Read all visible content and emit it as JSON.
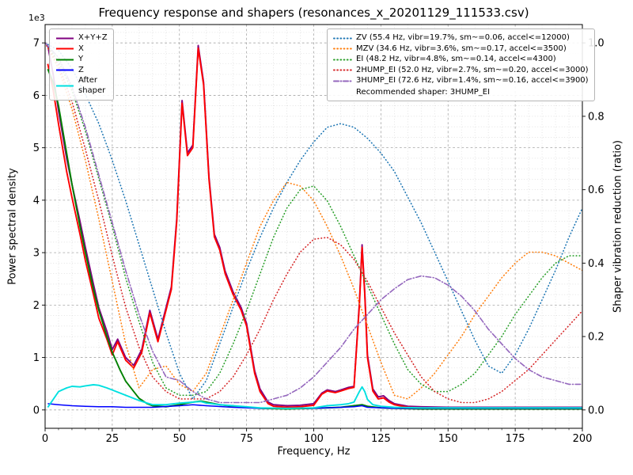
{
  "title": "Frequency response and shapers (resonances_x_20201129_111533.csv)",
  "axes": {
    "xlabel": "Frequency, Hz",
    "ylabel_left": "Power spectral density",
    "ylabel_right": "Shaper vibration reduction (ratio)",
    "offset_text": "1e3",
    "x_ticks": [
      0,
      25,
      50,
      75,
      100,
      125,
      150,
      175,
      200
    ],
    "y_ticks_left": [
      0,
      1,
      2,
      3,
      4,
      5,
      6,
      7
    ],
    "y_ticks_right": [
      0.0,
      0.2,
      0.4,
      0.6,
      0.8,
      1.0
    ]
  },
  "legend_psd": {
    "series_names": [
      "X+Y+Z",
      "X",
      "Y",
      "Z",
      "After shaper"
    ]
  },
  "legend_shapers": {
    "series_names": [
      "ZV",
      "MZV",
      "EI",
      "2HUMP_EI",
      "3HUMP_EI"
    ],
    "note": "Recommended shaper: 3HUMP_EI"
  },
  "colors": {
    "grid_major": "#a6a6a6",
    "grid_minor": "#d9d9d9",
    "spine": "#000000"
  },
  "chart_data": {
    "type": "line",
    "title": "Frequency response and shapers (resonances_x_20201129_111533.csv)",
    "xlabel": "Frequency, Hz",
    "ylabel": "Power spectral density",
    "ylabel2": "Shaper vibration reduction (ratio)",
    "xlim": [
      0,
      200
    ],
    "ylim_left": [
      0,
      7
    ],
    "left_axis_unit": "1e3",
    "ylim_right": [
      0.0,
      1.0
    ],
    "grid": true,
    "legend_positions": [
      "upper left",
      "upper right"
    ],
    "series": [
      {
        "name": "X+Y+Z",
        "label": "X+Y+Z",
        "axis": "left",
        "color": "#800080",
        "style": "solid",
        "x": [
          1,
          3,
          5,
          8,
          10,
          13,
          15,
          18,
          20,
          23,
          25,
          27,
          30,
          33,
          36,
          39,
          42,
          45,
          47,
          49,
          51,
          53,
          55,
          57,
          59,
          61,
          63,
          65,
          67,
          70,
          73,
          75,
          78,
          80,
          83,
          85,
          90,
          95,
          100,
          103,
          105,
          108,
          110,
          113,
          115,
          117,
          118,
          119,
          120,
          122,
          124,
          126,
          128,
          130,
          135,
          140,
          150,
          160,
          175,
          200
        ],
        "y": [
          6.95,
          6.4,
          5.7,
          4.8,
          4.3,
          3.6,
          3.1,
          2.4,
          1.95,
          1.5,
          1.15,
          1.35,
          1.0,
          0.85,
          1.15,
          1.9,
          1.35,
          1.95,
          2.35,
          3.65,
          5.9,
          4.9,
          5.05,
          6.95,
          6.25,
          4.45,
          3.35,
          3.1,
          2.65,
          2.25,
          1.95,
          1.65,
          0.75,
          0.4,
          0.15,
          0.1,
          0.08,
          0.09,
          0.12,
          0.32,
          0.38,
          0.35,
          0.38,
          0.43,
          0.45,
          2.05,
          3.15,
          2.25,
          1.05,
          0.4,
          0.25,
          0.27,
          0.18,
          0.12,
          0.07,
          0.06,
          0.05,
          0.05,
          0.05,
          0.05
        ]
      },
      {
        "name": "X",
        "label": "X",
        "axis": "left",
        "color": "#ff0000",
        "style": "solid",
        "x": [
          1,
          3,
          5,
          8,
          10,
          13,
          15,
          18,
          20,
          23,
          25,
          27,
          30,
          33,
          36,
          39,
          42,
          45,
          47,
          49,
          51,
          53,
          55,
          57,
          59,
          61,
          63,
          65,
          67,
          70,
          73,
          75,
          78,
          80,
          83,
          85,
          90,
          95,
          100,
          103,
          105,
          108,
          110,
          113,
          115,
          117,
          118,
          119,
          120,
          122,
          124,
          126,
          128,
          130,
          135,
          140,
          150,
          160,
          175,
          200
        ],
        "y": [
          6.6,
          6.1,
          5.45,
          4.55,
          4.05,
          3.35,
          2.85,
          2.2,
          1.75,
          1.35,
          1.05,
          1.3,
          0.95,
          0.8,
          1.1,
          1.85,
          1.3,
          1.9,
          2.3,
          3.6,
          5.85,
          4.85,
          5.0,
          6.9,
          6.2,
          4.4,
          3.3,
          3.05,
          2.6,
          2.2,
          1.9,
          1.6,
          0.7,
          0.35,
          0.12,
          0.07,
          0.05,
          0.06,
          0.09,
          0.3,
          0.36,
          0.33,
          0.36,
          0.41,
          0.43,
          2.0,
          3.1,
          2.2,
          1.0,
          0.36,
          0.21,
          0.23,
          0.15,
          0.1,
          0.05,
          0.04,
          0.03,
          0.03,
          0.03,
          0.03
        ]
      },
      {
        "name": "Y",
        "label": "Y",
        "axis": "left",
        "color": "#008000",
        "style": "solid",
        "x": [
          1,
          3,
          5,
          8,
          10,
          13,
          15,
          18,
          20,
          23,
          25,
          28,
          30,
          33,
          35,
          38,
          40,
          45,
          50,
          55,
          58,
          60,
          65,
          70,
          75,
          80,
          90,
          100,
          110,
          115,
          118,
          120,
          125,
          130,
          140,
          150,
          175,
          200
        ],
        "y": [
          6.5,
          6.25,
          5.8,
          4.9,
          4.3,
          3.5,
          3.0,
          2.3,
          1.9,
          1.4,
          1.1,
          0.75,
          0.55,
          0.35,
          0.22,
          0.12,
          0.08,
          0.06,
          0.1,
          0.15,
          0.17,
          0.15,
          0.1,
          0.07,
          0.05,
          0.03,
          0.02,
          0.03,
          0.05,
          0.08,
          0.1,
          0.07,
          0.04,
          0.03,
          0.02,
          0.02,
          0.02,
          0.02
        ]
      },
      {
        "name": "Z",
        "label": "Z",
        "axis": "left",
        "color": "#0000ff",
        "style": "solid",
        "x": [
          1,
          5,
          10,
          15,
          20,
          25,
          30,
          40,
          50,
          55,
          60,
          70,
          80,
          100,
          110,
          115,
          118,
          120,
          130,
          150,
          175,
          200
        ],
        "y": [
          0.12,
          0.1,
          0.08,
          0.07,
          0.06,
          0.06,
          0.05,
          0.05,
          0.08,
          0.1,
          0.08,
          0.05,
          0.03,
          0.03,
          0.05,
          0.06,
          0.08,
          0.05,
          0.03,
          0.03,
          0.03,
          0.03
        ]
      },
      {
        "name": "After shaper",
        "label": "After\nshaper",
        "axis": "left",
        "color": "#00e0e0",
        "style": "solid",
        "x": [
          1,
          5,
          8,
          10,
          13,
          15,
          18,
          20,
          23,
          25,
          28,
          30,
          33,
          35,
          38,
          40,
          45,
          48,
          50,
          53,
          55,
          58,
          60,
          65,
          70,
          75,
          80,
          90,
          100,
          105,
          110,
          113,
          115,
          117,
          118,
          119,
          120,
          122,
          125,
          130,
          140,
          150,
          175,
          200
        ],
        "y": [
          0.05,
          0.35,
          0.42,
          0.45,
          0.44,
          0.46,
          0.48,
          0.47,
          0.42,
          0.38,
          0.32,
          0.28,
          0.22,
          0.18,
          0.13,
          0.1,
          0.1,
          0.12,
          0.13,
          0.14,
          0.15,
          0.16,
          0.13,
          0.1,
          0.08,
          0.06,
          0.04,
          0.03,
          0.04,
          0.08,
          0.1,
          0.12,
          0.15,
          0.35,
          0.44,
          0.35,
          0.2,
          0.1,
          0.07,
          0.05,
          0.04,
          0.04,
          0.04,
          0.04
        ]
      },
      {
        "name": "ZV",
        "label": "ZV (55.4 Hz, vibr=19.7%, sm~=0.06, accel<=12000)",
        "axis": "right",
        "color": "#1f77b4",
        "style": "dotted",
        "x": [
          0,
          5,
          10,
          15,
          20,
          25,
          30,
          35,
          40,
          45,
          50,
          55,
          60,
          65,
          70,
          75,
          80,
          85,
          90,
          95,
          100,
          105,
          110,
          115,
          120,
          125,
          130,
          135,
          140,
          145,
          150,
          155,
          160,
          165,
          170,
          175,
          180,
          185,
          190,
          195,
          200
        ],
        "y": [
          1.0,
          0.98,
          0.93,
          0.86,
          0.78,
          0.68,
          0.57,
          0.45,
          0.33,
          0.21,
          0.1,
          0.03,
          0.08,
          0.18,
          0.28,
          0.38,
          0.47,
          0.55,
          0.62,
          0.68,
          0.73,
          0.77,
          0.78,
          0.77,
          0.74,
          0.7,
          0.65,
          0.58,
          0.51,
          0.43,
          0.35,
          0.27,
          0.19,
          0.12,
          0.1,
          0.15,
          0.22,
          0.3,
          0.38,
          0.47,
          0.55
        ]
      },
      {
        "name": "MZV",
        "label": "MZV (34.6 Hz, vibr=3.6%, sm~=0.17, accel<=3500)",
        "axis": "right",
        "color": "#ff7f0e",
        "style": "dotted",
        "x": [
          0,
          5,
          10,
          15,
          20,
          25,
          30,
          35,
          40,
          45,
          50,
          55,
          60,
          65,
          70,
          75,
          80,
          85,
          90,
          95,
          100,
          105,
          110,
          115,
          120,
          125,
          130,
          135,
          140,
          145,
          150,
          155,
          160,
          165,
          170,
          175,
          180,
          185,
          190,
          195,
          200
        ],
        "y": [
          1.0,
          0.93,
          0.82,
          0.68,
          0.52,
          0.35,
          0.18,
          0.06,
          0.11,
          0.12,
          0.07,
          0.05,
          0.1,
          0.2,
          0.3,
          0.4,
          0.5,
          0.57,
          0.62,
          0.61,
          0.57,
          0.5,
          0.42,
          0.33,
          0.23,
          0.13,
          0.04,
          0.03,
          0.06,
          0.1,
          0.15,
          0.2,
          0.26,
          0.31,
          0.36,
          0.4,
          0.43,
          0.43,
          0.42,
          0.4,
          0.38
        ]
      },
      {
        "name": "EI",
        "label": "EI (48.2 Hz, vibr=4.8%, sm~=0.14, accel<=4300)",
        "axis": "right",
        "color": "#2ca02c",
        "style": "dotted",
        "x": [
          0,
          5,
          10,
          15,
          20,
          25,
          30,
          35,
          40,
          45,
          50,
          55,
          60,
          65,
          70,
          75,
          80,
          85,
          90,
          95,
          100,
          105,
          110,
          115,
          120,
          125,
          130,
          135,
          140,
          145,
          150,
          155,
          160,
          165,
          170,
          175,
          180,
          185,
          190,
          195,
          200
        ],
        "y": [
          1.0,
          0.95,
          0.87,
          0.76,
          0.63,
          0.5,
          0.36,
          0.24,
          0.13,
          0.06,
          0.04,
          0.04,
          0.05,
          0.1,
          0.18,
          0.27,
          0.37,
          0.47,
          0.55,
          0.6,
          0.61,
          0.57,
          0.5,
          0.42,
          0.34,
          0.26,
          0.18,
          0.11,
          0.07,
          0.05,
          0.05,
          0.07,
          0.1,
          0.15,
          0.2,
          0.26,
          0.31,
          0.36,
          0.4,
          0.42,
          0.42
        ]
      },
      {
        "name": "2HUMP_EI",
        "label": "2HUMP_EI (52.0 Hz, vibr=2.7%, sm~=0.20, accel<=3000)",
        "axis": "right",
        "color": "#d62728",
        "style": "dotted",
        "x": [
          0,
          5,
          10,
          15,
          20,
          25,
          30,
          35,
          40,
          45,
          50,
          55,
          60,
          65,
          70,
          75,
          80,
          85,
          90,
          95,
          100,
          105,
          110,
          115,
          120,
          125,
          130,
          135,
          140,
          145,
          150,
          155,
          160,
          165,
          170,
          175,
          180,
          185,
          190,
          195,
          200
        ],
        "y": [
          1.0,
          0.94,
          0.84,
          0.71,
          0.57,
          0.42,
          0.28,
          0.17,
          0.09,
          0.05,
          0.03,
          0.03,
          0.03,
          0.05,
          0.09,
          0.15,
          0.22,
          0.3,
          0.37,
          0.43,
          0.465,
          0.47,
          0.45,
          0.41,
          0.35,
          0.28,
          0.21,
          0.15,
          0.09,
          0.05,
          0.03,
          0.02,
          0.02,
          0.03,
          0.05,
          0.08,
          0.11,
          0.15,
          0.19,
          0.23,
          0.27
        ]
      },
      {
        "name": "3HUMP_EI",
        "label": "3HUMP_EI (72.6 Hz, vibr=1.4%, sm~=0.16, accel<=3900)",
        "axis": "right",
        "color": "#9467bd",
        "style": "dashdot",
        "x": [
          0,
          5,
          10,
          15,
          20,
          25,
          30,
          35,
          40,
          45,
          50,
          55,
          60,
          65,
          70,
          75,
          80,
          85,
          90,
          95,
          100,
          105,
          110,
          115,
          120,
          125,
          130,
          135,
          140,
          145,
          150,
          155,
          160,
          165,
          170,
          175,
          180,
          185,
          190,
          195,
          200
        ],
        "y": [
          1.0,
          0.96,
          0.88,
          0.77,
          0.64,
          0.51,
          0.38,
          0.26,
          0.16,
          0.09,
          0.08,
          0.05,
          0.03,
          0.02,
          0.02,
          0.02,
          0.02,
          0.03,
          0.04,
          0.06,
          0.09,
          0.13,
          0.17,
          0.22,
          0.26,
          0.3,
          0.33,
          0.355,
          0.365,
          0.36,
          0.34,
          0.31,
          0.27,
          0.22,
          0.18,
          0.14,
          0.11,
          0.09,
          0.08,
          0.07,
          0.07
        ]
      }
    ]
  }
}
